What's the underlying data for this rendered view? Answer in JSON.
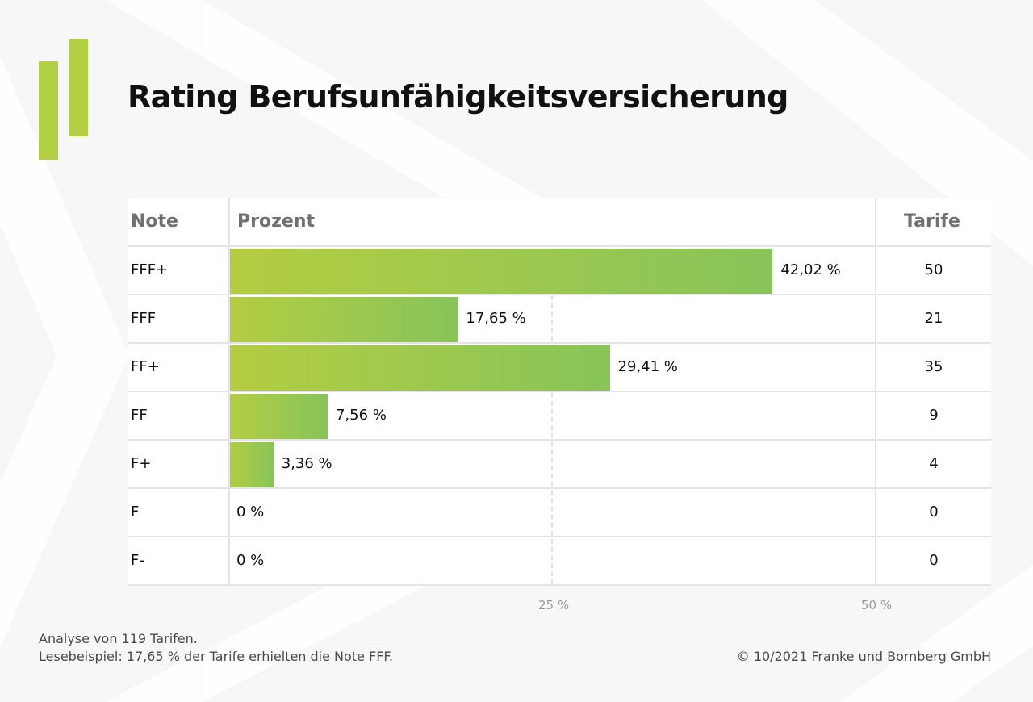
{
  "title": "Rating Berufsunfähigkeitsversicherung",
  "headers": {
    "note": "Note",
    "prozent": "Prozent",
    "tarife": "Tarife"
  },
  "chart_data": {
    "type": "bar",
    "orientation": "horizontal",
    "categories": [
      "FFF+",
      "FFF",
      "FF+",
      "FF",
      "F+",
      "F",
      "F-"
    ],
    "values": [
      42.02,
      17.65,
      29.41,
      7.56,
      3.36,
      0,
      0
    ],
    "value_labels": [
      "42,02 %",
      "17,65 %",
      "29,41 %",
      "7,56 %",
      "3,36 %",
      "0 %",
      "0 %"
    ],
    "tarife": [
      "50",
      "21",
      "35",
      "9",
      "4",
      "0",
      "0"
    ],
    "xlim": [
      0,
      50
    ],
    "x_ticks": [
      25,
      50
    ],
    "x_tick_labels": [
      "25 %",
      "50 %"
    ],
    "bar_color_start": "#b4cd42",
    "bar_color_end": "#88c45a"
  },
  "footer": {
    "line1": "Analyse von 119 Tarifen.",
    "line2": "Lesebeispiel: 17,65 % der Tarife erhielten die Note FFF.",
    "copyright": "© 10/2021 Franke und Bornberg GmbH"
  },
  "colors": {
    "accent": "#b3cf45",
    "background": "#f7f7f7",
    "table_background": "#ffffff"
  },
  "logo_icon": "green-bars-logo-icon"
}
